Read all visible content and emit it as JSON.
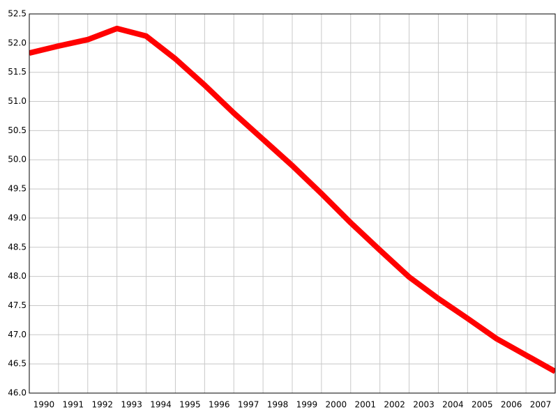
{
  "chart_data": {
    "type": "line",
    "x": [
      1989.5,
      1990.5,
      1991.5,
      1992.5,
      1993.5,
      1994.5,
      1995.5,
      1996.5,
      1997.5,
      1998.5,
      1999.5,
      2000.5,
      2001.5,
      2002.5,
      2003.5,
      2004.5,
      2005.5,
      2006.5,
      2007.5
    ],
    "series": [
      {
        "color": "#ff0000",
        "values": [
          51.83,
          51.95,
          52.06,
          52.25,
          52.12,
          51.73,
          51.28,
          50.8,
          50.35,
          49.9,
          49.42,
          48.92,
          48.45,
          47.99,
          47.62,
          47.28,
          46.93,
          46.65,
          46.37
        ]
      }
    ],
    "xlim": [
      1989.5,
      2007.5
    ],
    "xticks": [
      1990,
      1991,
      1992,
      1993,
      1994,
      1995,
      1996,
      1997,
      1998,
      1999,
      2000,
      2001,
      2002,
      2003,
      2004,
      2005,
      2006,
      2007
    ],
    "ylim": [
      46.0,
      52.5
    ],
    "yticks": [
      {
        "value": 46.0,
        "label": "46.0"
      },
      46.5,
      {
        "value": 47.0,
        "label": "47.0"
      },
      47.5,
      {
        "value": 48.0,
        "label": "48.0"
      },
      48.5,
      {
        "value": 49.0,
        "label": "49.0"
      },
      49.5,
      {
        "value": 50.0,
        "label": "50.0"
      },
      50.5,
      {
        "value": 51.0,
        "label": "51.0"
      },
      51.5,
      {
        "value": 52.0,
        "label": "52.0"
      },
      52.5
    ],
    "grid": true
  }
}
